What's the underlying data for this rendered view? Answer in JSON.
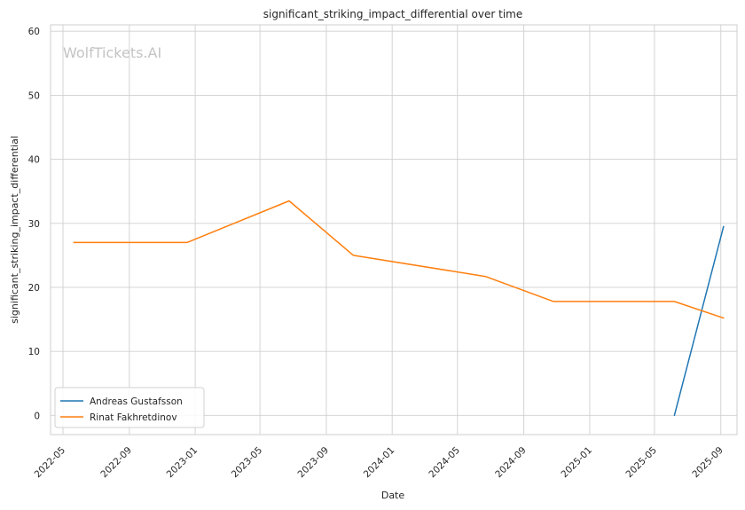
{
  "chart_data": {
    "type": "line",
    "title": "significant_striking_impact_differential over time",
    "xlabel": "Date",
    "ylabel": "significant_striking_impact_differential",
    "watermark": "WolfTickets.AI",
    "xlim": [
      "2022-04-08",
      "2025-10-01"
    ],
    "ylim": [
      -3,
      61
    ],
    "x_ticks": [
      "2022-05",
      "2022-09",
      "2023-01",
      "2023-05",
      "2023-09",
      "2024-01",
      "2024-05",
      "2024-09",
      "2025-01",
      "2025-05",
      "2025-09"
    ],
    "y_ticks": [
      0,
      10,
      20,
      30,
      40,
      50,
      60
    ],
    "grid": true,
    "legend_position": "lower-left",
    "series": [
      {
        "name": "Andreas Gustafsson",
        "color": "#1f77b4",
        "points": [
          {
            "x": "2025-06-07",
            "y": 0
          },
          {
            "x": "2025-09-06",
            "y": 29.5
          }
        ]
      },
      {
        "name": "Rinat Fakhretdinov",
        "color": "#ff7f0e",
        "points": [
          {
            "x": "2022-05-21",
            "y": 27
          },
          {
            "x": "2022-12-17",
            "y": 27
          },
          {
            "x": "2023-06-24",
            "y": 33.5
          },
          {
            "x": "2023-10-21",
            "y": 25
          },
          {
            "x": "2024-06-22",
            "y": 21.7
          },
          {
            "x": "2024-10-26",
            "y": 17.8
          },
          {
            "x": "2025-06-07",
            "y": 17.8
          },
          {
            "x": "2025-09-06",
            "y": 15.2
          }
        ]
      }
    ]
  }
}
